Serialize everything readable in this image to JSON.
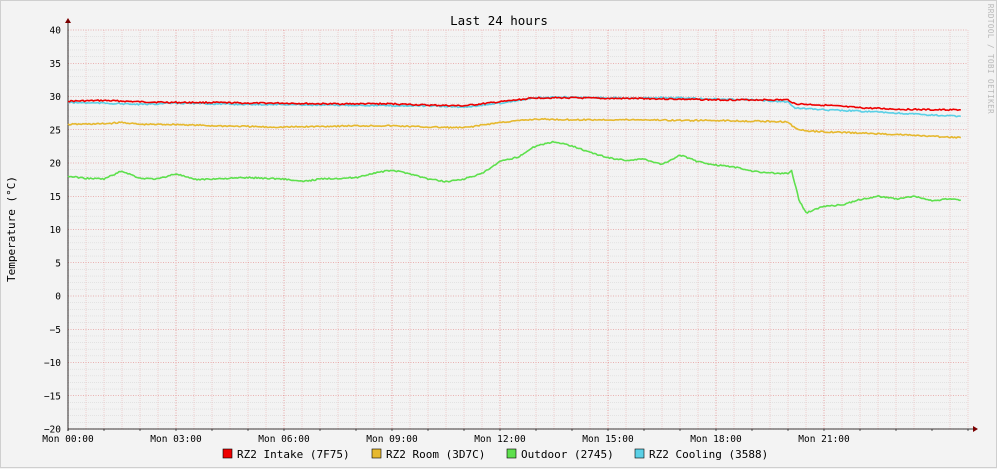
{
  "chart_data": {
    "type": "line",
    "title": "Last 24 hours",
    "ylabel": "Temperature (°C)",
    "watermark": "RRDTOOL / TOBI OETIKER",
    "ylim": [
      -20,
      40
    ],
    "y_ticks": [
      40,
      35,
      30,
      25,
      20,
      15,
      10,
      5,
      0,
      -5,
      -10,
      -15,
      -20
    ],
    "xlim": [
      0,
      25
    ],
    "x_ticks": [
      {
        "x": 0,
        "label": "Mon 00:00"
      },
      {
        "x": 3,
        "label": "Mon 03:00"
      },
      {
        "x": 6,
        "label": "Mon 06:00"
      },
      {
        "x": 9,
        "label": "Mon 09:00"
      },
      {
        "x": 12,
        "label": "Mon 12:00"
      },
      {
        "x": 15,
        "label": "Mon 15:00"
      },
      {
        "x": 18,
        "label": "Mon 18:00"
      },
      {
        "x": 21,
        "label": "Mon 21:00"
      }
    ],
    "grid": true,
    "legend_position": "bottom",
    "series": [
      {
        "name": "RZ2 Intake (7F75)",
        "color": "#ee0000",
        "points": [
          [
            0,
            29.3
          ],
          [
            1,
            29.4
          ],
          [
            2,
            29.2
          ],
          [
            3,
            29.1
          ],
          [
            4,
            29.1
          ],
          [
            5,
            29.0
          ],
          [
            6,
            29.0
          ],
          [
            7,
            28.9
          ],
          [
            8,
            28.9
          ],
          [
            9,
            28.9
          ],
          [
            10,
            28.7
          ],
          [
            11,
            28.6
          ],
          [
            12,
            29.2
          ],
          [
            13,
            29.8
          ],
          [
            14,
            29.8
          ],
          [
            15,
            29.7
          ],
          [
            16,
            29.7
          ],
          [
            17,
            29.6
          ],
          [
            18,
            29.5
          ],
          [
            19,
            29.5
          ],
          [
            20,
            29.5
          ],
          [
            20.2,
            28.9
          ],
          [
            21,
            28.7
          ],
          [
            22,
            28.3
          ],
          [
            23,
            28.1
          ],
          [
            24,
            28.0
          ],
          [
            24.8,
            28.0
          ]
        ]
      },
      {
        "name": "RZ2 Room (3D7C)",
        "color": "#e6b82e",
        "points": [
          [
            0,
            25.8
          ],
          [
            1,
            25.9
          ],
          [
            1.5,
            26.1
          ],
          [
            2,
            25.8
          ],
          [
            3,
            25.8
          ],
          [
            4,
            25.6
          ],
          [
            5,
            25.5
          ],
          [
            5.5,
            25.4
          ],
          [
            6,
            25.4
          ],
          [
            7,
            25.5
          ],
          [
            8,
            25.6
          ],
          [
            9,
            25.6
          ],
          [
            10,
            25.4
          ],
          [
            11,
            25.3
          ],
          [
            12,
            26.1
          ],
          [
            13,
            26.6
          ],
          [
            14,
            26.5
          ],
          [
            15,
            26.5
          ],
          [
            16,
            26.5
          ],
          [
            17,
            26.4
          ],
          [
            18,
            26.4
          ],
          [
            19,
            26.3
          ],
          [
            20,
            26.2
          ],
          [
            20.2,
            25.2
          ],
          [
            20.5,
            24.8
          ],
          [
            21,
            24.7
          ],
          [
            22,
            24.5
          ],
          [
            23,
            24.3
          ],
          [
            24,
            24.0
          ],
          [
            24.8,
            23.8
          ]
        ]
      },
      {
        "name": "Outdoor (2745)",
        "color": "#5ee04d",
        "points": [
          [
            0,
            18.0
          ],
          [
            0.5,
            17.7
          ],
          [
            1,
            17.6
          ],
          [
            1.5,
            18.8
          ],
          [
            2,
            17.7
          ],
          [
            2.5,
            17.6
          ],
          [
            3,
            18.4
          ],
          [
            3.5,
            17.5
          ],
          [
            4,
            17.6
          ],
          [
            5,
            17.8
          ],
          [
            6,
            17.6
          ],
          [
            6.5,
            17.2
          ],
          [
            7,
            17.6
          ],
          [
            8,
            17.8
          ],
          [
            8.5,
            18.5
          ],
          [
            9,
            18.9
          ],
          [
            9.5,
            18.4
          ],
          [
            10,
            17.6
          ],
          [
            10.5,
            17.2
          ],
          [
            11,
            17.6
          ],
          [
            11.5,
            18.4
          ],
          [
            12,
            20.2
          ],
          [
            12.5,
            20.9
          ],
          [
            13,
            22.6
          ],
          [
            13.5,
            23.2
          ],
          [
            14,
            22.6
          ],
          [
            14.5,
            21.6
          ],
          [
            15,
            20.8
          ],
          [
            15.5,
            20.4
          ],
          [
            16,
            20.6
          ],
          [
            16.5,
            19.8
          ],
          [
            17,
            21.2
          ],
          [
            17.5,
            20.2
          ],
          [
            18,
            19.7
          ],
          [
            18.5,
            19.4
          ],
          [
            19,
            18.8
          ],
          [
            19.5,
            18.5
          ],
          [
            20,
            18.4
          ],
          [
            20.1,
            18.9
          ],
          [
            20.3,
            14.5
          ],
          [
            20.5,
            12.5
          ],
          [
            21,
            13.5
          ],
          [
            21.5,
            13.7
          ],
          [
            22,
            14.5
          ],
          [
            22.5,
            15.0
          ],
          [
            23,
            14.6
          ],
          [
            23.5,
            15.0
          ],
          [
            24,
            14.3
          ],
          [
            24.5,
            14.6
          ],
          [
            24.8,
            14.4
          ]
        ]
      },
      {
        "name": "RZ2 Cooling (3588)",
        "color": "#5ad0e6",
        "points": [
          [
            0,
            29.1
          ],
          [
            1,
            29.0
          ],
          [
            2,
            28.8
          ],
          [
            3,
            29.0
          ],
          [
            4,
            28.9
          ],
          [
            5,
            28.8
          ],
          [
            6,
            28.8
          ],
          [
            7,
            28.7
          ],
          [
            8,
            28.7
          ],
          [
            9,
            28.6
          ],
          [
            10,
            28.6
          ],
          [
            11,
            28.4
          ],
          [
            12,
            29.0
          ],
          [
            13,
            29.8
          ],
          [
            14,
            29.9
          ],
          [
            15,
            29.8
          ],
          [
            16,
            29.8
          ],
          [
            17,
            29.8
          ],
          [
            18,
            29.6
          ],
          [
            19,
            29.5
          ],
          [
            20,
            29.2
          ],
          [
            20.2,
            28.3
          ],
          [
            21,
            28.0
          ],
          [
            22,
            27.8
          ],
          [
            23,
            27.5
          ],
          [
            24,
            27.2
          ],
          [
            24.8,
            27.0
          ]
        ]
      }
    ]
  }
}
